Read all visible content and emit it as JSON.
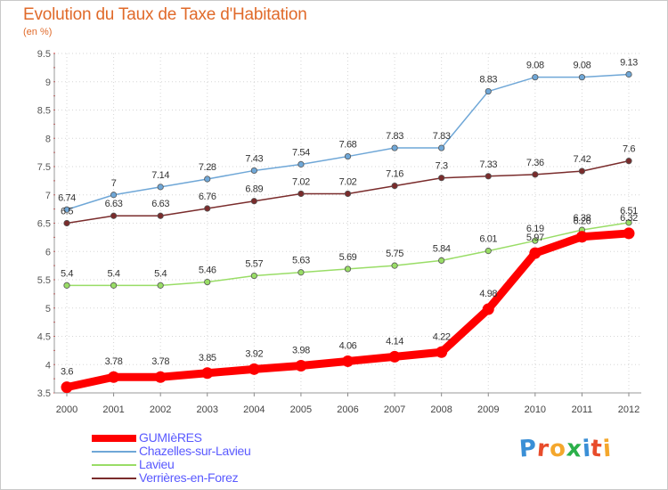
{
  "header": {
    "title": "Evolution du Taux de Taxe d'Habitation",
    "subtitle": "(en %)"
  },
  "brand": {
    "text": "Proxiti",
    "colors": [
      "#3a8fd6",
      "#e84c2b",
      "#f4a72c",
      "#2bb04a",
      "#3a8fd6",
      "#e84c2b",
      "#f4a72c"
    ]
  },
  "chart_data": {
    "type": "line",
    "title": "Evolution du Taux de Taxe d'Habitation",
    "subtitle": "(en %)",
    "xlabel": "",
    "ylabel": "",
    "x": [
      "2000",
      "2001",
      "2002",
      "2003",
      "2004",
      "2005",
      "2006",
      "2007",
      "2008",
      "2009",
      "2010",
      "2011",
      "2012"
    ],
    "ylim": [
      3.5,
      9.5
    ],
    "yticks": [
      "3.5",
      "4",
      "4.5",
      "5",
      "5.5",
      "6",
      "6.5",
      "7",
      "7.5",
      "8",
      "8.5",
      "9",
      "9.5"
    ],
    "grid": true,
    "legend_position": "bottom-left",
    "series": [
      {
        "name": "GUMIèRES",
        "color": "#ff0000",
        "values": [
          3.6,
          3.78,
          3.78,
          3.85,
          3.92,
          3.98,
          4.06,
          4.14,
          4.22,
          4.98,
          5.97,
          6.26,
          6.32
        ],
        "labels": [
          "3.6",
          "3.78",
          "3.78",
          "3.85",
          "3.92",
          "3.98",
          "4.06",
          "4.14",
          "4.22",
          "4.98",
          "5.97",
          "6.26",
          "6.32"
        ]
      },
      {
        "name": "Chazelles-sur-Lavieu",
        "color": "#6fa7d7",
        "values": [
          6.74,
          7,
          7.14,
          7.28,
          7.43,
          7.54,
          7.68,
          7.83,
          7.83,
          8.83,
          9.08,
          9.08,
          9.13
        ],
        "labels": [
          "6.74",
          "7",
          "7.14",
          "7.28",
          "7.43",
          "7.54",
          "7.68",
          "7.83",
          "7.83",
          "8.83",
          "9.08",
          "9.08",
          "9.13"
        ]
      },
      {
        "name": "Lavieu",
        "color": "#99dd66",
        "values": [
          5.4,
          5.4,
          5.4,
          5.46,
          5.57,
          5.63,
          5.69,
          5.75,
          5.84,
          6.01,
          6.19,
          6.38,
          6.51
        ],
        "labels": [
          "5.4",
          "5.4",
          "5.4",
          "5.46",
          "5.57",
          "5.63",
          "5.69",
          "5.75",
          "5.84",
          "6.01",
          "6.19",
          "6.38",
          "6.51"
        ]
      },
      {
        "name": "Verrières-en-Forez",
        "color": "#7a2c2c",
        "values": [
          6.5,
          6.63,
          6.63,
          6.76,
          6.89,
          7.02,
          7.02,
          7.16,
          7.3,
          7.33,
          7.36,
          7.42,
          7.6
        ],
        "labels": [
          "6.5",
          "6.63",
          "6.63",
          "6.76",
          "6.89",
          "7.02",
          "7.02",
          "7.16",
          "7.3",
          "7.33",
          "7.36",
          "7.42",
          "7.6"
        ]
      }
    ]
  }
}
